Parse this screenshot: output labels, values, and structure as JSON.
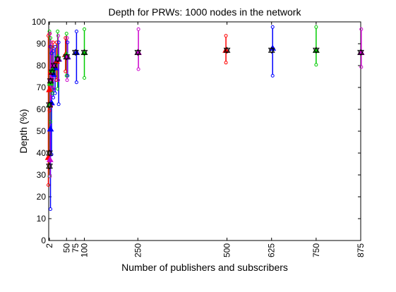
{
  "chart_data": {
    "type": "scatter",
    "title": "Depth for PRWs: 1000 nodes in the network",
    "xlabel": "Number of publishers and subscribers",
    "ylabel": "Depth (%)",
    "xlim": [
      0,
      875
    ],
    "ylim": [
      0,
      100
    ],
    "xticks": [
      2,
      50,
      75,
      100,
      250,
      500,
      625,
      750,
      875
    ],
    "yticks": [
      0,
      10,
      20,
      30,
      40,
      50,
      60,
      70,
      80,
      90,
      100
    ],
    "grid": false,
    "series": [
      {
        "color": "#ff0000",
        "points": [
          {
            "x": 2,
            "mean": 38,
            "lo": 26,
            "hi": 93
          },
          {
            "x": 5,
            "mean": 69,
            "lo": 60,
            "hi": 94
          },
          {
            "x": 10,
            "mean": 77,
            "lo": 62,
            "hi": 88
          },
          {
            "x": 15,
            "mean": 80,
            "lo": 70,
            "hi": 90
          },
          {
            "x": 25,
            "mean": 82,
            "lo": 74,
            "hi": 90
          },
          {
            "x": 50,
            "mean": 85,
            "lo": 78,
            "hi": 92
          },
          {
            "x": 500,
            "mean": 87,
            "lo": 82,
            "hi": 93
          }
        ]
      },
      {
        "color": "#0000ff",
        "points": [
          {
            "x": 2,
            "mean": 51,
            "lo": 15,
            "hi": 88
          },
          {
            "x": 5,
            "mean": 63,
            "lo": 40,
            "hi": 85
          },
          {
            "x": 10,
            "mean": 76,
            "lo": 66,
            "hi": 86
          },
          {
            "x": 15,
            "mean": 79,
            "lo": 68,
            "hi": 88
          },
          {
            "x": 25,
            "mean": 83,
            "lo": 63,
            "hi": 90
          },
          {
            "x": 50,
            "mean": 84,
            "lo": 76,
            "hi": 90
          },
          {
            "x": 75,
            "mean": 86,
            "lo": 73,
            "hi": 95
          },
          {
            "x": 625,
            "mean": 88,
            "lo": 76,
            "hi": 97
          }
        ]
      },
      {
        "color": "#00cc00",
        "points": [
          {
            "x": 2,
            "mean": 62,
            "lo": 30,
            "hi": 95
          },
          {
            "x": 5,
            "mean": 72,
            "lo": 55,
            "hi": 92
          },
          {
            "x": 10,
            "mean": 78,
            "lo": 68,
            "hi": 88
          },
          {
            "x": 25,
            "mean": 84,
            "lo": 70,
            "hi": 95
          },
          {
            "x": 50,
            "mean": 85,
            "lo": 76,
            "hi": 94
          },
          {
            "x": 100,
            "mean": 86,
            "lo": 75,
            "hi": 96
          },
          {
            "x": 750,
            "mean": 87,
            "lo": 81,
            "hi": 97
          }
        ]
      },
      {
        "color": "#cc00cc",
        "points": [
          {
            "x": 2,
            "mean": 37,
            "lo": 30,
            "hi": 94
          },
          {
            "x": 5,
            "mean": 74,
            "lo": 62,
            "hi": 90
          },
          {
            "x": 10,
            "mean": 80,
            "lo": 70,
            "hi": 88
          },
          {
            "x": 25,
            "mean": 83,
            "lo": 74,
            "hi": 93
          },
          {
            "x": 50,
            "mean": 84,
            "lo": 74,
            "hi": 92
          },
          {
            "x": 250,
            "mean": 86,
            "lo": 79,
            "hi": 96
          },
          {
            "x": 875,
            "mean": 86,
            "lo": 80,
            "hi": 96
          }
        ]
      }
    ],
    "black_markers": [
      {
        "x": 2,
        "y": 34
      },
      {
        "x": 2,
        "y": 40
      },
      {
        "x": 2,
        "y": 62
      },
      {
        "x": 5,
        "y": 73
      },
      {
        "x": 10,
        "y": 77
      },
      {
        "x": 15,
        "y": 80
      },
      {
        "x": 25,
        "y": 83
      },
      {
        "x": 50,
        "y": 84
      },
      {
        "x": 75,
        "y": 86
      },
      {
        "x": 100,
        "y": 86
      },
      {
        "x": 250,
        "y": 86
      },
      {
        "x": 500,
        "y": 87
      },
      {
        "x": 625,
        "y": 87
      },
      {
        "x": 750,
        "y": 87
      },
      {
        "x": 875,
        "y": 86
      }
    ]
  }
}
